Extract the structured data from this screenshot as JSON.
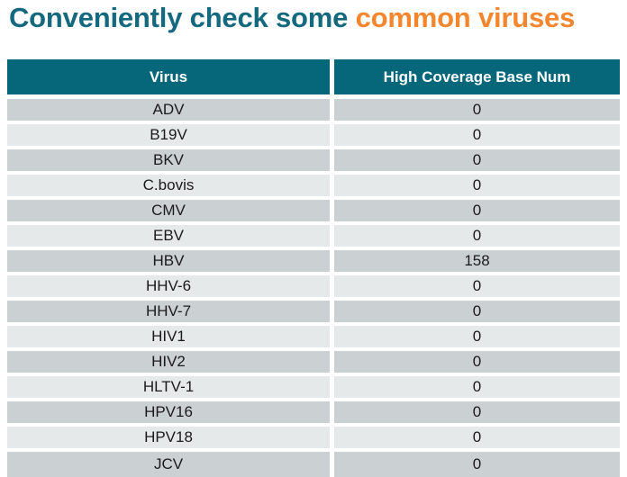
{
  "title": {
    "prefix": "Conveniently check some ",
    "highlight": "common viruses"
  },
  "colors": {
    "background": "#FFFFFF",
    "title_teal": "#15697F",
    "title_orange": "#F6862E",
    "header_bg": "#06677A",
    "header_text": "#FFFFFF",
    "row_dark": "#CBD1D3",
    "row_light": "#E6E9EA",
    "row_text": "#1A1A1A"
  },
  "table": {
    "columns": [
      "Virus",
      "High Coverage Base Num"
    ],
    "rows": [
      {
        "virus": "ADV",
        "high_coverage_base_num": "0"
      },
      {
        "virus": "B19V",
        "high_coverage_base_num": "0"
      },
      {
        "virus": "BKV",
        "high_coverage_base_num": "0"
      },
      {
        "virus": "C.bovis",
        "high_coverage_base_num": "0"
      },
      {
        "virus": "CMV",
        "high_coverage_base_num": "0"
      },
      {
        "virus": "EBV",
        "high_coverage_base_num": "0"
      },
      {
        "virus": "HBV",
        "high_coverage_base_num": "158"
      },
      {
        "virus": "HHV-6",
        "high_coverage_base_num": "0"
      },
      {
        "virus": "HHV-7",
        "high_coverage_base_num": "0"
      },
      {
        "virus": "HIV1",
        "high_coverage_base_num": "0"
      },
      {
        "virus": "HIV2",
        "high_coverage_base_num": "0"
      },
      {
        "virus": "HLTV-1",
        "high_coverage_base_num": "0"
      },
      {
        "virus": "HPV16",
        "high_coverage_base_num": "0"
      },
      {
        "virus": "HPV18",
        "high_coverage_base_num": "0"
      },
      {
        "virus": "JCV",
        "high_coverage_base_num": "0"
      }
    ]
  },
  "chart_data": {
    "type": "table",
    "title": "Conveniently check some common viruses",
    "columns": [
      "Virus",
      "High Coverage Base Num"
    ],
    "rows": [
      [
        "ADV",
        0
      ],
      [
        "B19V",
        0
      ],
      [
        "BKV",
        0
      ],
      [
        "C.bovis",
        0
      ],
      [
        "CMV",
        0
      ],
      [
        "EBV",
        0
      ],
      [
        "HBV",
        158
      ],
      [
        "HHV-6",
        0
      ],
      [
        "HHV-7",
        0
      ],
      [
        "HIV1",
        0
      ],
      [
        "HIV2",
        0
      ],
      [
        "HLTV-1",
        0
      ],
      [
        "HPV16",
        0
      ],
      [
        "HPV18",
        0
      ],
      [
        "JCV",
        0
      ]
    ]
  }
}
